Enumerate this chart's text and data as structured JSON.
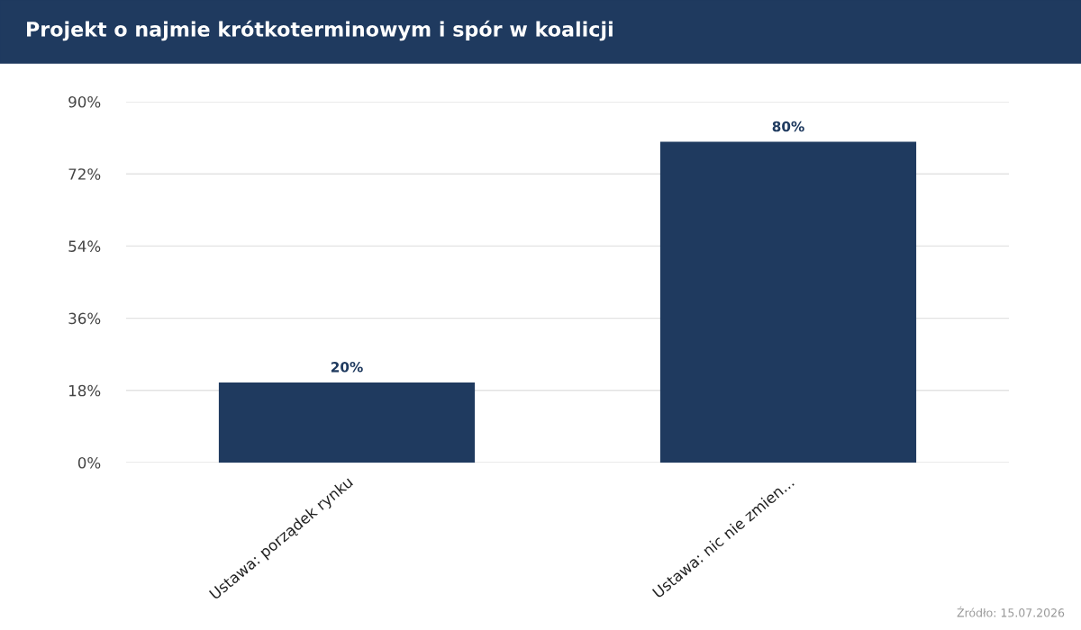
{
  "chart_data": {
    "type": "bar",
    "title": "Projekt o najmie krótkoterminowym i spór w koalicji",
    "categories": [
      "Ustawa: porządek rynku",
      "Ustawa: nic nie zmien..."
    ],
    "values": [
      20,
      80
    ],
    "color": "#1f3a5f",
    "ylim": [
      0,
      90
    ],
    "yticks": [
      {
        "value": 0,
        "label": "0%"
      },
      {
        "value": 18,
        "label": "18%"
      },
      {
        "value": 36,
        "label": "36%"
      },
      {
        "value": 54,
        "label": "54%"
      },
      {
        "value": 72,
        "label": "72%"
      },
      {
        "value": 90,
        "label": "90%"
      }
    ],
    "value_labels": [
      "20%",
      "80%"
    ],
    "grid": "y",
    "annotations": [
      "Źródło: 15.07.2026"
    ]
  }
}
